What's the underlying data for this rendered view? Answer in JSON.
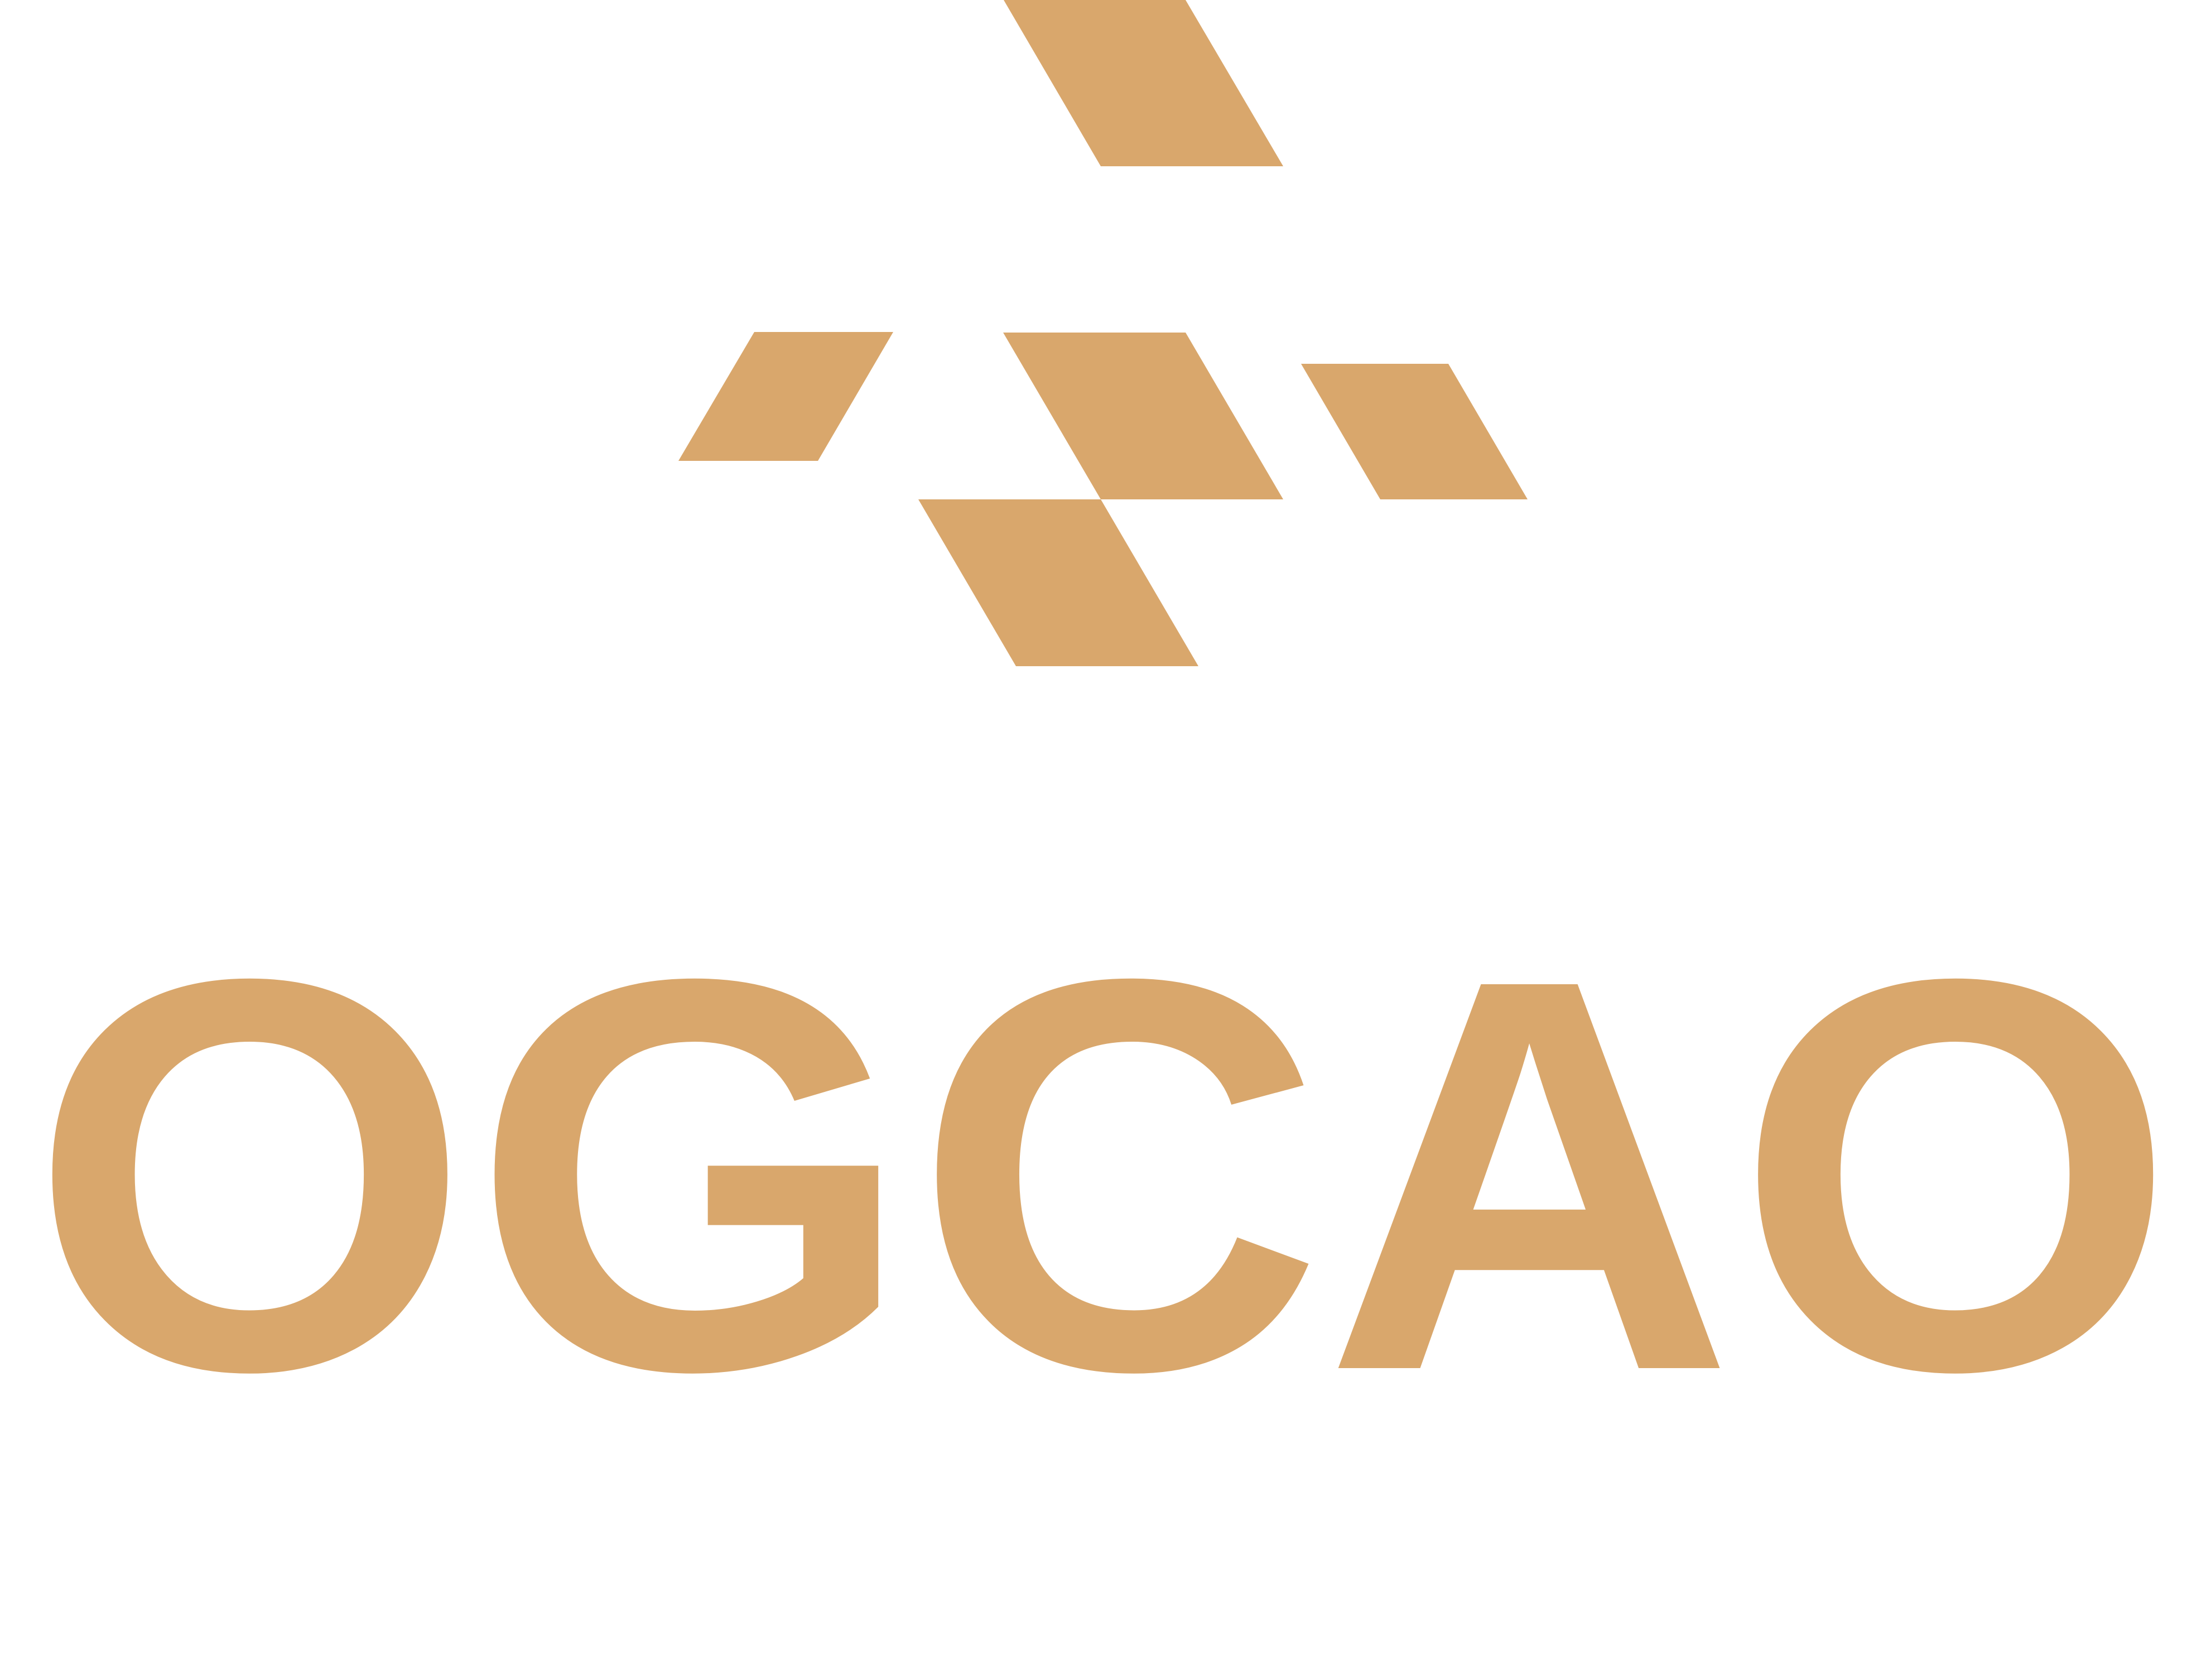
{
  "brand": {
    "name": "OGCAO",
    "color": "#d9a76c",
    "background": "#ffffff"
  },
  "emblem": {
    "icon": "geometric-parallelogram-emblem-icon",
    "shapes": [
      "parallelogram",
      "parallelogram",
      "parallelogram",
      "parallelogram",
      "parallelogram",
      "parallelogram"
    ]
  }
}
